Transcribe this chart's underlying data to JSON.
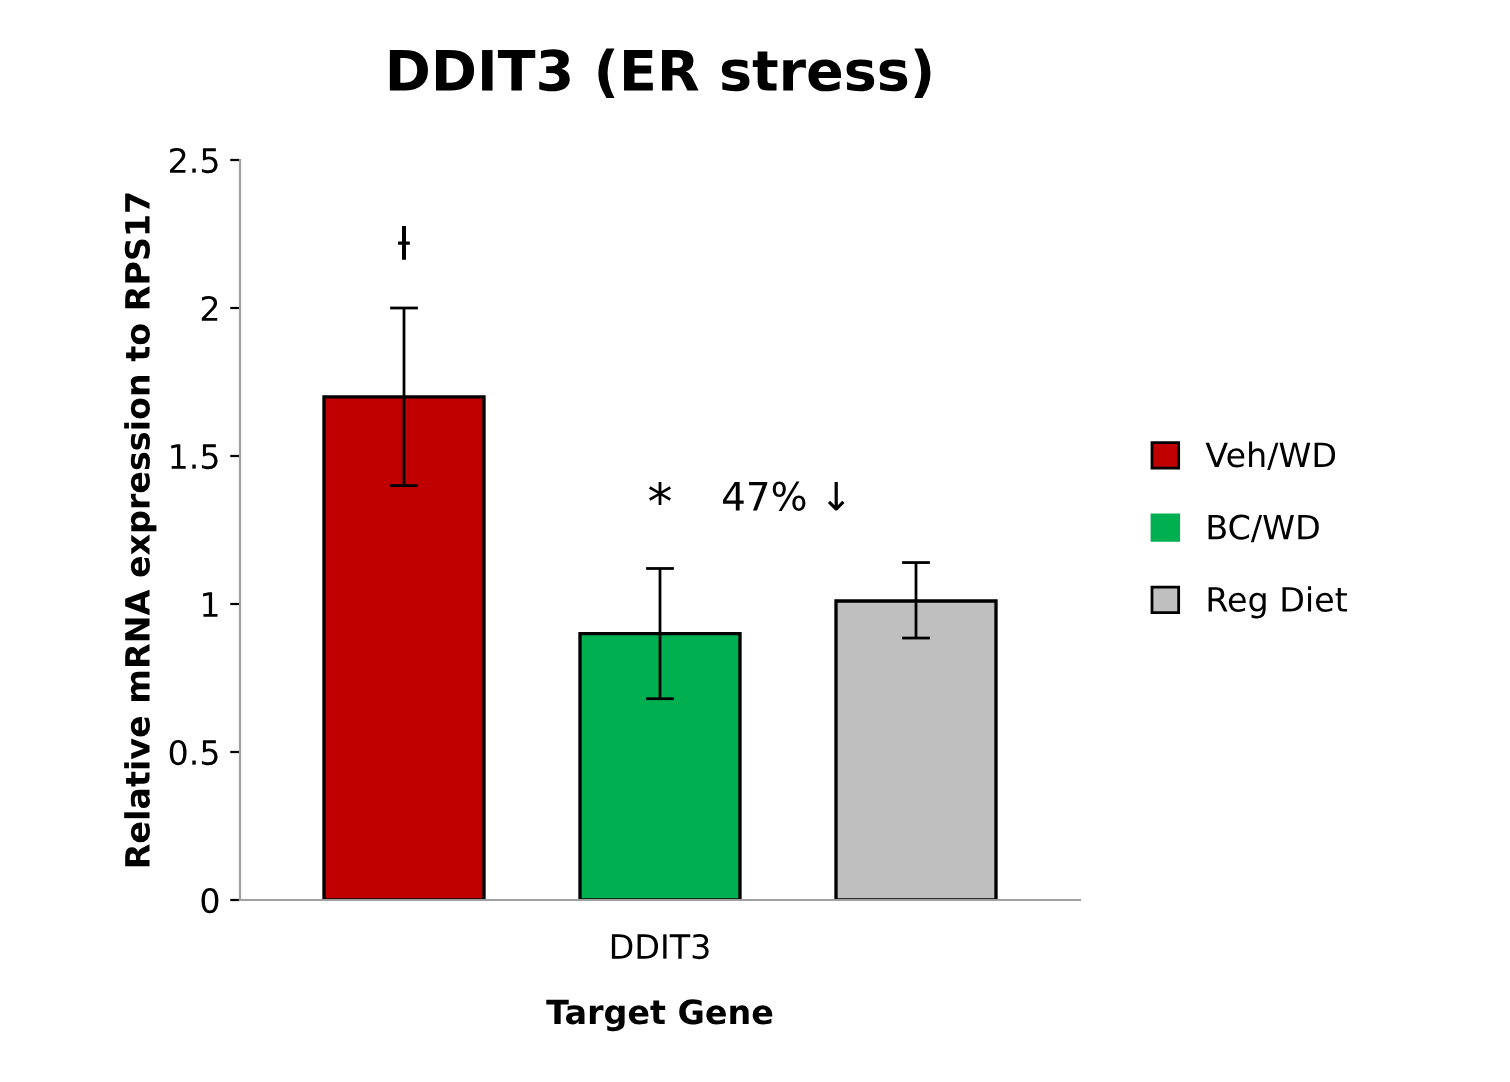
{
  "chart_data": {
    "type": "bar",
    "title": "DDIT3 (ER stress)",
    "xlabel": "Target Gene",
    "ylabel": "Relative mRNA expression to RPS17",
    "categories": [
      "DDIT3"
    ],
    "series": [
      {
        "name": "Veh/WD",
        "color": "#c00000",
        "values": [
          1.7
        ],
        "errors": [
          0.3
        ]
      },
      {
        "name": "BC/WD",
        "color": "#00b050",
        "values": [
          0.9
        ],
        "errors": [
          [
            0.68,
            1.12
          ]
        ]
      },
      {
        "name": "Reg Diet",
        "color": "#bfbfbf",
        "values": [
          1.01
        ],
        "errors": [
          [
            0.885,
            1.14
          ]
        ]
      }
    ],
    "annotations": [
      "ƚ",
      "*",
      "47% ↓"
    ],
    "ylim": [
      0,
      2.5
    ],
    "yticks": [
      0,
      0.5,
      1,
      1.5,
      2,
      2.5
    ],
    "grid": false,
    "legend": "right"
  }
}
